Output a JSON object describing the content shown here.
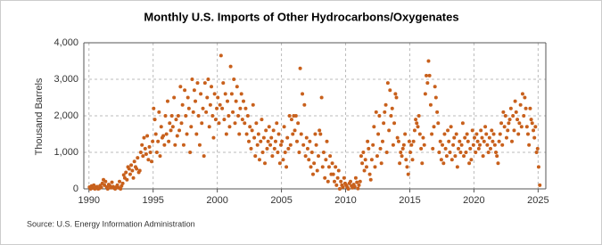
{
  "chart_data": {
    "type": "scatter",
    "title": "Monthly U.S. Imports of Other Hydrocarbons/Oxygenates",
    "y_label": "Thousand Barrels",
    "source": "Source: U.S. Energy Information Administration",
    "color": "#c8601c",
    "grid": true,
    "xlim": [
      1989.6,
      2025.6
    ],
    "ylim": [
      0,
      4000
    ],
    "xticks": [
      1990,
      1995,
      2000,
      2005,
      2010,
      2015,
      2020,
      2025
    ],
    "yticks": [
      0,
      {
        "value": 1000,
        "label": "1,000"
      },
      {
        "value": 2000,
        "label": "2,000"
      },
      {
        "value": 3000,
        "label": "3,000"
      },
      {
        "value": 4000,
        "label": "4,000"
      }
    ],
    "x": [
      1990.04,
      1990.13,
      1990.21,
      1990.29,
      1990.38,
      1990.46,
      1990.54,
      1990.63,
      1990.71,
      1990.79,
      1990.88,
      1990.96,
      1991.04,
      1991.13,
      1991.21,
      1991.29,
      1991.38,
      1991.46,
      1991.54,
      1991.63,
      1991.71,
      1991.79,
      1991.88,
      1991.96,
      1992.04,
      1992.13,
      1992.21,
      1992.29,
      1992.38,
      1992.46,
      1992.54,
      1992.63,
      1992.71,
      1992.79,
      1992.88,
      1992.96,
      1993.04,
      1993.13,
      1993.21,
      1993.29,
      1993.38,
      1993.46,
      1993.54,
      1993.63,
      1993.71,
      1993.79,
      1993.88,
      1993.96,
      1994.04,
      1994.13,
      1994.21,
      1994.29,
      1994.38,
      1994.46,
      1994.54,
      1994.63,
      1994.71,
      1994.79,
      1994.88,
      1994.96,
      1995.04,
      1995.13,
      1995.21,
      1995.29,
      1995.38,
      1995.46,
      1995.54,
      1995.63,
      1995.71,
      1995.79,
      1995.88,
      1995.96,
      1996.04,
      1996.13,
      1996.21,
      1996.29,
      1996.38,
      1996.46,
      1996.54,
      1996.63,
      1996.71,
      1996.79,
      1996.88,
      1996.96,
      1997.04,
      1997.13,
      1997.21,
      1997.29,
      1997.38,
      1997.46,
      1997.54,
      1997.63,
      1997.71,
      1997.79,
      1997.88,
      1997.96,
      1998.04,
      1998.13,
      1998.21,
      1998.29,
      1998.38,
      1998.46,
      1998.54,
      1998.63,
      1998.71,
      1998.79,
      1998.88,
      1998.96,
      1999.04,
      1999.13,
      1999.21,
      1999.29,
      1999.38,
      1999.46,
      1999.54,
      1999.63,
      1999.71,
      1999.79,
      1999.88,
      1999.96,
      2000.04,
      2000.13,
      2000.21,
      2000.29,
      2000.38,
      2000.46,
      2000.54,
      2000.63,
      2000.71,
      2000.79,
      2000.88,
      2000.96,
      2001.04,
      2001.13,
      2001.21,
      2001.29,
      2001.38,
      2001.46,
      2001.54,
      2001.63,
      2001.71,
      2001.79,
      2001.88,
      2001.96,
      2002.04,
      2002.13,
      2002.21,
      2002.29,
      2002.38,
      2002.46,
      2002.54,
      2002.63,
      2002.71,
      2002.79,
      2002.88,
      2002.96,
      2003.04,
      2003.13,
      2003.21,
      2003.29,
      2003.38,
      2003.46,
      2003.54,
      2003.63,
      2003.71,
      2003.79,
      2003.88,
      2003.96,
      2004.04,
      2004.13,
      2004.21,
      2004.29,
      2004.38,
      2004.46,
      2004.54,
      2004.63,
      2004.71,
      2004.79,
      2004.88,
      2004.96,
      2005.04,
      2005.13,
      2005.21,
      2005.29,
      2005.38,
      2005.46,
      2005.54,
      2005.63,
      2005.71,
      2005.79,
      2005.88,
      2005.96,
      2006.04,
      2006.13,
      2006.21,
      2006.29,
      2006.38,
      2006.46,
      2006.54,
      2006.63,
      2006.71,
      2006.79,
      2006.88,
      2006.96,
      2007.04,
      2007.13,
      2007.21,
      2007.29,
      2007.38,
      2007.46,
      2007.54,
      2007.63,
      2007.71,
      2007.79,
      2007.88,
      2007.96,
      2008.04,
      2008.13,
      2008.21,
      2008.29,
      2008.38,
      2008.46,
      2008.54,
      2008.63,
      2008.71,
      2008.79,
      2008.88,
      2008.96,
      2009.04,
      2009.13,
      2009.21,
      2009.29,
      2009.38,
      2009.46,
      2009.54,
      2009.63,
      2009.71,
      2009.79,
      2009.88,
      2009.96,
      2010.04,
      2010.13,
      2010.21,
      2010.29,
      2010.38,
      2010.46,
      2010.54,
      2010.63,
      2010.71,
      2010.79,
      2010.88,
      2010.96,
      2011.04,
      2011.13,
      2011.21,
      2011.29,
      2011.38,
      2011.46,
      2011.54,
      2011.63,
      2011.71,
      2011.79,
      2011.88,
      2011.96,
      2012.04,
      2012.13,
      2012.21,
      2012.29,
      2012.38,
      2012.46,
      2012.54,
      2012.63,
      2012.71,
      2012.79,
      2012.88,
      2012.96,
      2013.04,
      2013.13,
      2013.21,
      2013.29,
      2013.38,
      2013.46,
      2013.54,
      2013.63,
      2013.71,
      2013.79,
      2013.88,
      2013.96,
      2014.04,
      2014.13,
      2014.21,
      2014.29,
      2014.38,
      2014.46,
      2014.54,
      2014.63,
      2014.71,
      2014.79,
      2014.88,
      2014.96,
      2015.04,
      2015.13,
      2015.21,
      2015.29,
      2015.38,
      2015.46,
      2015.54,
      2015.63,
      2015.71,
      2015.79,
      2015.88,
      2015.96,
      2016.04,
      2016.13,
      2016.21,
      2016.29,
      2016.38,
      2016.46,
      2016.54,
      2016.63,
      2016.71,
      2016.79,
      2016.88,
      2016.96,
      2017.04,
      2017.13,
      2017.21,
      2017.29,
      2017.38,
      2017.46,
      2017.54,
      2017.63,
      2017.71,
      2017.79,
      2017.88,
      2017.96,
      2018.04,
      2018.13,
      2018.21,
      2018.29,
      2018.38,
      2018.46,
      2018.54,
      2018.63,
      2018.71,
      2018.79,
      2018.88,
      2018.96,
      2019.04,
      2019.13,
      2019.21,
      2019.29,
      2019.38,
      2019.46,
      2019.54,
      2019.63,
      2019.71,
      2019.79,
      2019.88,
      2019.96,
      2020.04,
      2020.13,
      2020.21,
      2020.29,
      2020.38,
      2020.46,
      2020.54,
      2020.63,
      2020.71,
      2020.79,
      2020.88,
      2020.96,
      2021.04,
      2021.13,
      2021.21,
      2021.29,
      2021.38,
      2021.46,
      2021.54,
      2021.63,
      2021.71,
      2021.79,
      2021.88,
      2021.96,
      2022.04,
      2022.13,
      2022.21,
      2022.29,
      2022.38,
      2022.46,
      2022.54,
      2022.63,
      2022.71,
      2022.79,
      2022.88,
      2022.96,
      2023.04,
      2023.13,
      2023.21,
      2023.29,
      2023.38,
      2023.46,
      2023.54,
      2023.63,
      2023.71,
      2023.79,
      2023.88,
      2023.96,
      2024.04,
      2024.13,
      2024.21,
      2024.29,
      2024.38,
      2024.46,
      2024.54,
      2024.63,
      2024.71,
      2024.79,
      2024.88,
      2024.96,
      2025.04,
      2025.13
    ],
    "values": [
      50,
      0,
      80,
      20,
      100,
      0,
      30,
      60,
      0,
      10,
      90,
      40,
      150,
      250,
      100,
      200,
      50,
      0,
      120,
      80,
      30,
      180,
      60,
      20,
      0,
      50,
      100,
      30,
      200,
      0,
      80,
      150,
      380,
      300,
      450,
      250,
      600,
      550,
      400,
      650,
      500,
      300,
      750,
      600,
      550,
      850,
      450,
      500,
      1000,
      1200,
      900,
      1400,
      1100,
      950,
      1450,
      800,
      1150,
      1000,
      750,
      1300,
      2200,
      1900,
      1500,
      1000,
      1300,
      2100,
      900,
      1700,
      1400,
      1450,
      1200,
      2000,
      1500,
      2400,
      1300,
      1800,
      1600,
      2000,
      1700,
      2500,
      1200,
      1900,
      1450,
      2000,
      1600,
      2800,
      1800,
      2300,
      1200,
      2700,
      2000,
      1500,
      2500,
      2200,
      1000,
      1700,
      3000,
      2100,
      2700,
      2400,
      1500,
      2900,
      2000,
      1200,
      2600,
      1800,
      2200,
      900,
      2900,
      2100,
      2500,
      3000,
      1700,
      2300,
      2800,
      2000,
      1400,
      2600,
      1900,
      2200,
      2500,
      1800,
      2300,
      3650,
      2200,
      2900,
      1900,
      2600,
      1500,
      2400,
      2000,
      1700,
      3350,
      2600,
      2100,
      3000,
      1800,
      2400,
      2800,
      2000,
      1500,
      2200,
      2600,
      1900,
      2400,
      1800,
      2200,
      1500,
      2000,
      1300,
      1700,
      1100,
      1600,
      2300,
      1400,
      900,
      1800,
      1200,
      1500,
      800,
      1300,
      1900,
      1000,
      1400,
      700,
      1600,
      1100,
      1300,
      1700,
      1200,
      1400,
      900,
      1600,
      1100,
      1300,
      1800,
      1000,
      1500,
      700,
      1200,
      1300,
      800,
      1700,
      1000,
      600,
      1400,
      1100,
      2000,
      1200,
      1900,
      1500,
      2000,
      1600,
      2000,
      1300,
      1800,
      1000,
      3300,
      1500,
      2600,
      1200,
      2300,
      900,
      1400,
      1100,
      800,
      1300,
      600,
      1000,
      400,
      700,
      1500,
      1200,
      500,
      900,
      1600,
      1500,
      2500,
      600,
      1000,
      300,
      800,
      1300,
      200,
      600,
      900,
      400,
      700,
      400,
      200,
      600,
      100,
      300,
      500,
      0,
      200,
      100,
      50,
      300,
      150,
      100,
      50,
      0,
      150,
      200,
      80,
      30,
      120,
      60,
      300,
      180,
      10,
      100,
      200,
      900,
      700,
      1000,
      500,
      800,
      600,
      1300,
      1100,
      400,
      250,
      800,
      1200,
      1700,
      600,
      2100,
      900,
      1500,
      2000,
      1100,
      700,
      1300,
      1800,
      2100,
      2300,
      1000,
      2900,
      1600,
      2700,
      2000,
      2200,
      1200,
      1800,
      2600,
      2500,
      1400,
      1300,
      700,
      1000,
      900,
      1100,
      1200,
      1500,
      800,
      600,
      400,
      1300,
      1000,
      1200,
      800,
      1300,
      1600,
      1900,
      1800,
      1700,
      2000,
      1500,
      1100,
      700,
      1400,
      1200,
      2600,
      3100,
      2900,
      3500,
      3100,
      2300,
      1500,
      1100,
      1700,
      2800,
      2500,
      2100,
      1800,
      1000,
      1300,
      800,
      1200,
      700,
      1500,
      1100,
      900,
      1600,
      1300,
      1000,
      1700,
      800,
      1200,
      1400,
      900,
      1500,
      600,
      1100,
      1300,
      1000,
      1200,
      1800,
      900,
      1400,
      1000,
      1500,
      1300,
      700,
      1100,
      800,
      1600,
      1200,
      1400,
      1000,
      1500,
      1300,
      1100,
      1200,
      1600,
      1400,
      900,
      1300,
      1700,
      1500,
      1200,
      1000,
      1400,
      1100,
      1600,
      1300,
      1500,
      1200,
      1000,
      900,
      700,
      1300,
      1500,
      1800,
      1200,
      2100,
      1700,
      2000,
      1400,
      1600,
      1800,
      1900,
      2200,
      1300,
      2000,
      1600,
      2400,
      2100,
      1900,
      1500,
      1800,
      2300,
      1700,
      2600,
      2000,
      2500,
      2200,
      1700,
      1500,
      1200,
      2200,
      1900,
      1800,
      1600,
      1400,
      1700,
      1000,
      1100,
      600,
      100
    ]
  }
}
